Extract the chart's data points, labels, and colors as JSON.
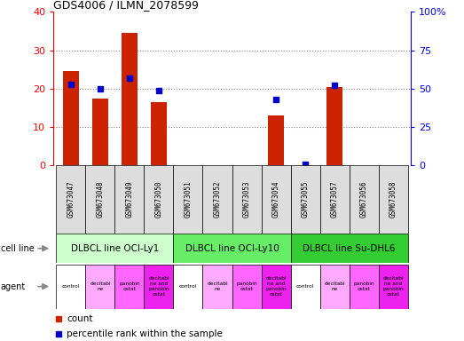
{
  "title": "GDS4006 / ILMN_2078599",
  "samples": [
    "GSM673047",
    "GSM673048",
    "GSM673049",
    "GSM673050",
    "GSM673051",
    "GSM673052",
    "GSM673053",
    "GSM673054",
    "GSM673055",
    "GSM673057",
    "GSM673056",
    "GSM673058"
  ],
  "counts": [
    24.5,
    17.5,
    34.5,
    16.5,
    0,
    0,
    0,
    13.0,
    0,
    20.5,
    0,
    0
  ],
  "percentile": [
    53,
    50,
    57,
    49,
    0,
    0,
    0,
    43,
    1,
    52,
    0,
    0
  ],
  "bar_color": "#cc2200",
  "dot_color": "#0000cc",
  "left_ylim": [
    0,
    40
  ],
  "right_ylim": [
    0,
    100
  ],
  "left_yticks": [
    0,
    10,
    20,
    30,
    40
  ],
  "right_yticks": [
    0,
    25,
    50,
    75,
    100
  ],
  "right_yticklabels": [
    "0",
    "25",
    "50",
    "75",
    "100%"
  ],
  "cell_line_groups": [
    {
      "label": "DLBCL line OCI-Ly1",
      "start": 0,
      "end": 4,
      "color": "#ccffcc"
    },
    {
      "label": "DLBCL line OCI-Ly10",
      "start": 4,
      "end": 8,
      "color": "#66ee66"
    },
    {
      "label": "DLBCL line Su-DHL6",
      "start": 8,
      "end": 12,
      "color": "#33cc33"
    }
  ],
  "agent_labels": [
    "control",
    "decitabi\nne",
    "panobin\nostat",
    "decitabi\nne and\npanobin\nostat",
    "control",
    "decitabi\nne",
    "panobin\nostat",
    "decitabi\nne and\npanobin\nostat",
    "control",
    "decitabi\nne",
    "panobin\nostat",
    "decitabi\nne and\npanobin\nostat"
  ],
  "agent_colors": [
    "#ffffff",
    "#ffaaff",
    "#ff66ff",
    "#ee22ee",
    "#ffffff",
    "#ffaaff",
    "#ff66ff",
    "#ee22ee",
    "#ffffff",
    "#ffaaff",
    "#ff66ff",
    "#ee22ee"
  ],
  "cell_line_row_label": "cell line",
  "agent_row_label": "agent",
  "legend_count_label": "count",
  "legend_pct_label": "percentile rank within the sample",
  "dotted_line_color": "#888888",
  "bg_color": "#ffffff",
  "xtick_bg": "#dddddd",
  "fig_w": 5.23,
  "fig_h": 3.84
}
